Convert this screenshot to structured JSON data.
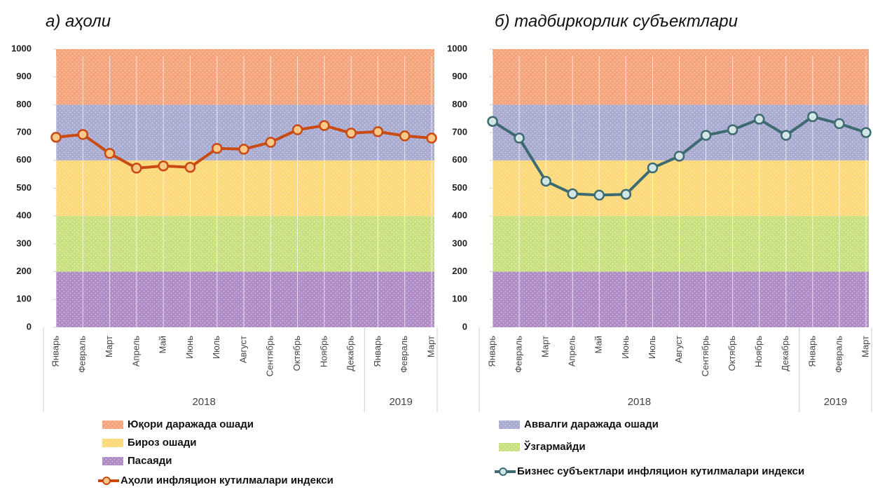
{
  "bands": [
    {
      "name": "Пасаяди",
      "from": 0,
      "to": 200,
      "color": "#b08cc6"
    },
    {
      "name": "Ўзгармайди",
      "from": 200,
      "to": 400,
      "color": "#c9e07e"
    },
    {
      "name": "Бироз ошади",
      "from": 400,
      "to": 600,
      "color": "#fdd979"
    },
    {
      "name": "Аввалги даражада ошади",
      "from": 600,
      "to": 800,
      "color": "#a9abd1"
    },
    {
      "name": "Юқори даражада ошади",
      "from": 800,
      "to": 1000,
      "color": "#f6a47c"
    }
  ],
  "chart_data": [
    {
      "type": "line",
      "title": "а) аҳоли",
      "years": [
        {
          "label": "2018",
          "months": [
            "Январь",
            "Февраль",
            "Март",
            "Апрель",
            "Май",
            "Июнь",
            "Июль",
            "Август",
            "Сентябрь",
            "Октябрь",
            "Ноябрь",
            "Декабрь"
          ]
        },
        {
          "label": "2019",
          "months": [
            "Январь",
            "Февраль",
            "Март"
          ]
        }
      ],
      "series": [
        {
          "name": "Аҳоли инфляцион кутилмалари индекси",
          "color": "#c94a12",
          "marker_color": "#f9c98a",
          "values": [
            683,
            693,
            625,
            572,
            580,
            575,
            643,
            640,
            665,
            710,
            725,
            698,
            703,
            688,
            680
          ]
        }
      ],
      "ylim": [
        0,
        1000
      ],
      "yticks": [
        0,
        100,
        200,
        300,
        400,
        500,
        600,
        700,
        800,
        900,
        1000
      ]
    },
    {
      "type": "line",
      "title": "б) тадбиркорлик субъектлари",
      "years": [
        {
          "label": "2018",
          "months": [
            "Январь",
            "Февраль",
            "Март",
            "Апрель",
            "Май",
            "Июнь",
            "Июль",
            "Август",
            "Сентябрь",
            "Октябрь",
            "Ноябрь",
            "Декабрь"
          ]
        },
        {
          "label": "2019",
          "months": [
            "Январь",
            "Февраль",
            "Март"
          ]
        }
      ],
      "series": [
        {
          "name": "Бизнес субъектлари инфляцион кутилмалари индекси",
          "color": "#3e6a72",
          "marker_color": "#d3e6e6",
          "values": [
            740,
            680,
            525,
            480,
            475,
            478,
            573,
            615,
            690,
            710,
            748,
            690,
            757,
            732,
            700
          ]
        }
      ],
      "ylim": [
        0,
        1000
      ],
      "yticks": [
        0,
        100,
        200,
        300,
        400,
        500,
        600,
        700,
        800,
        900,
        1000
      ]
    }
  ]
}
